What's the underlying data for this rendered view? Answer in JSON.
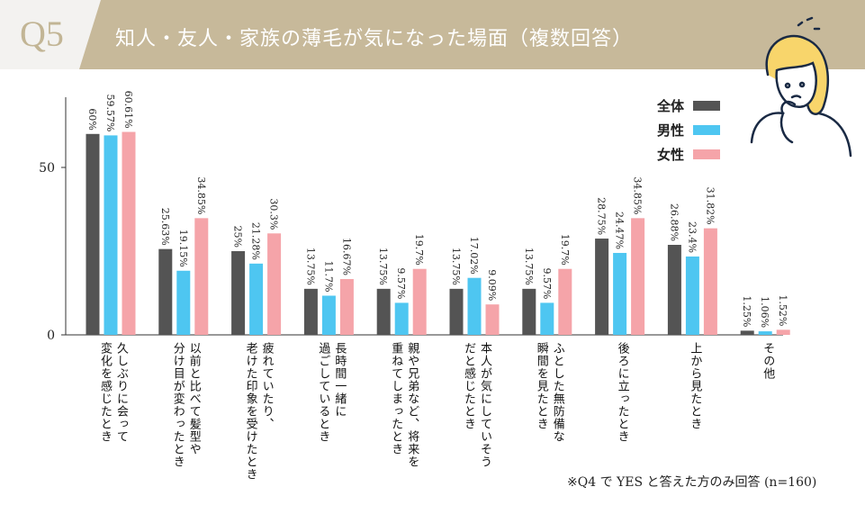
{
  "header": {
    "question": "Q5",
    "title": "知人・友人・家族の薄毛が気になった場面（複数回答）"
  },
  "colors": {
    "header_band": "#c7b99a",
    "header_bg": "#f3f2f0",
    "all": "#545454",
    "male": "#4ec6f1",
    "female": "#f5a4a9"
  },
  "footnote": "※Q4 で YES と答えた方のみ回答 (n=160)",
  "illustration": "worried-woman-icon",
  "chart_data": {
    "type": "bar",
    "ylim": [
      0,
      70
    ],
    "yticks": [
      0,
      50
    ],
    "ytick_labels": [
      "0",
      "50"
    ],
    "grid": false,
    "legend_placement": "top-right",
    "categories": [
      "久しぶりに会って\n変化を感じたとき",
      "以前と比べて髪型や\n分け目が変わったとき",
      "疲れていたり、\n老けた印象を受けたとき",
      "長時間一緒に\n過ごしているとき",
      "親や兄弟など、将来を\n重ねてしまったとき",
      "本人が気にしていそう\nだと感じたとき",
      "ふとした無防備な\n瞬間を見たとき",
      "後ろに立ったとき",
      "上から見たとき",
      "その他"
    ],
    "series": [
      {
        "name": "全体",
        "values": [
          60,
          25.63,
          25,
          13.75,
          13.75,
          13.75,
          13.75,
          28.75,
          26.88,
          1.25
        ],
        "labels": [
          "60%",
          "25.63%",
          "25%",
          "13.75%",
          "13.75%",
          "13.75%",
          "13.75%",
          "28.75%",
          "26.88%",
          "1.25%"
        ]
      },
      {
        "name": "男性",
        "values": [
          59.57,
          19.15,
          21.28,
          11.7,
          9.57,
          17.02,
          9.57,
          24.47,
          23.4,
          1.06
        ],
        "labels": [
          "59.57%",
          "19.15%",
          "21.28%",
          "11.7%",
          "9.57%",
          "17.02%",
          "9.57%",
          "24.47%",
          "23.4%",
          "1.06%"
        ]
      },
      {
        "name": "女性",
        "values": [
          60.61,
          34.85,
          30.3,
          16.67,
          19.7,
          9.09,
          19.7,
          34.85,
          31.82,
          1.52
        ],
        "labels": [
          "60.61%",
          "34.85%",
          "30.3%",
          "16.67%",
          "19.7%",
          "9.09%",
          "19.7%",
          "34.85%",
          "31.82%",
          "1.52%"
        ]
      }
    ]
  }
}
